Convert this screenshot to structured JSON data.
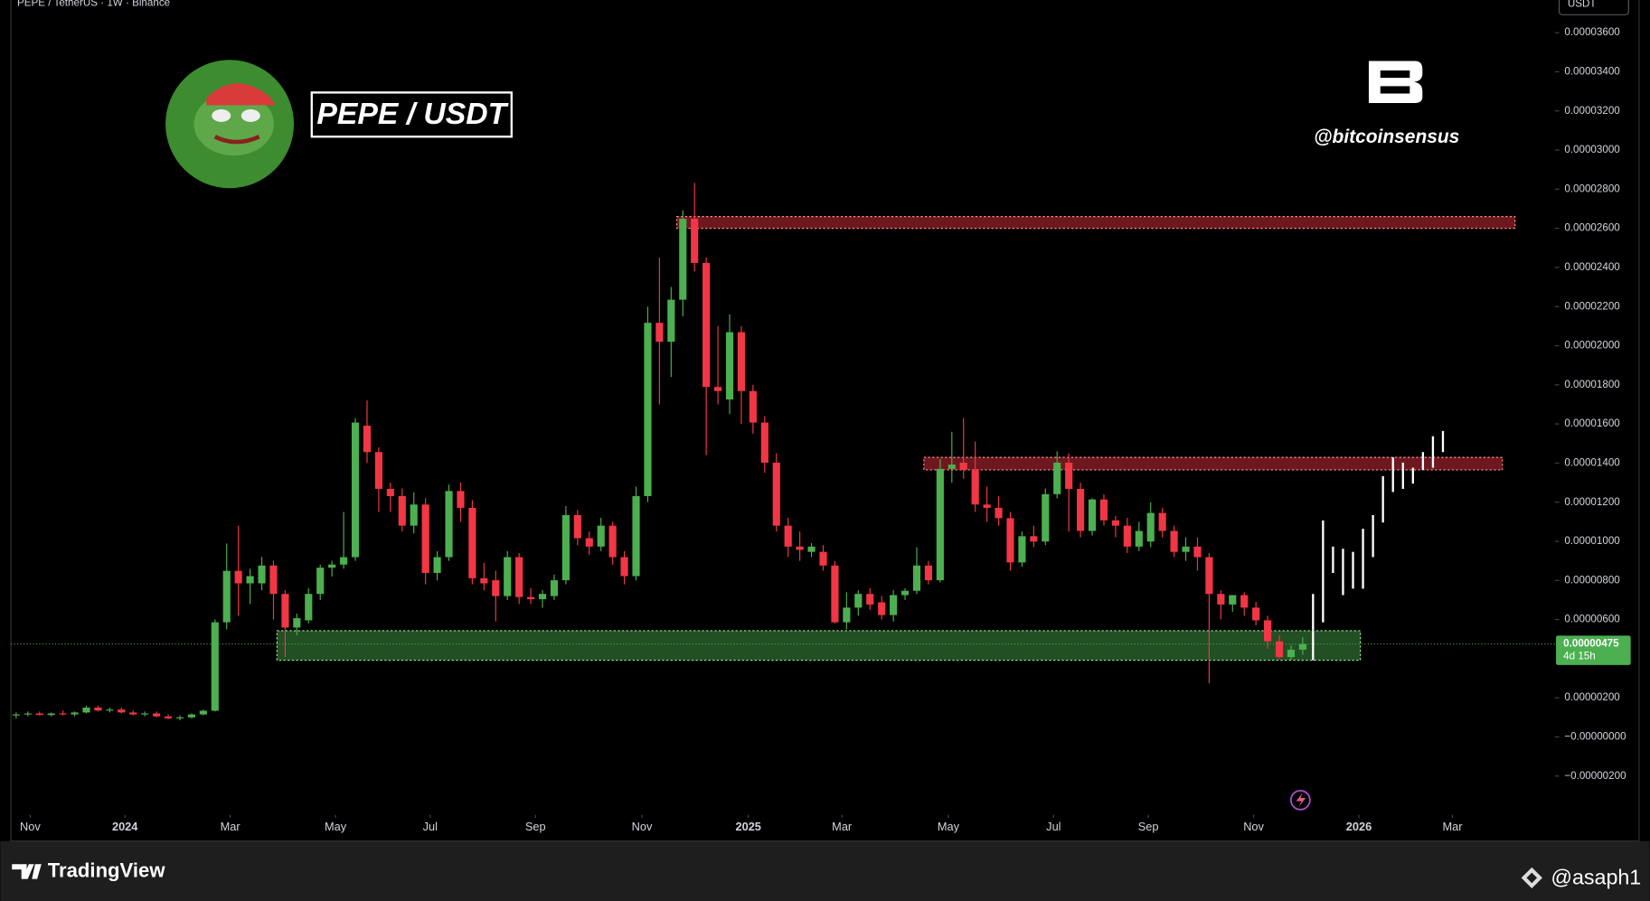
{
  "chart_data": {
    "type": "candlestick",
    "header": "PEPE / TetherUS · 1W · Binance",
    "currency": "USDT",
    "title": "PEPE / USDT",
    "watermark": "@bitcoinsensus",
    "brand": "TradingView",
    "author": "@asaph1",
    "up_color": "#4caf50",
    "down_color": "#f23645",
    "grid": false,
    "ylim": [
      -3.98e-06,
      3.767e-05
    ],
    "yticks": [
      {
        "value": 3.6e-05,
        "label": "0.00003600"
      },
      {
        "value": 3.4e-05,
        "label": "0.00003400"
      },
      {
        "value": 3.2e-05,
        "label": "0.00003200"
      },
      {
        "value": 3e-05,
        "label": "0.00003000"
      },
      {
        "value": 2.8e-05,
        "label": "0.00002800"
      },
      {
        "value": 2.6e-05,
        "label": "0.00002600"
      },
      {
        "value": 2.4e-05,
        "label": "0.00002400"
      },
      {
        "value": 2.2e-05,
        "label": "0.00002200"
      },
      {
        "value": 2e-05,
        "label": "0.00002000"
      },
      {
        "value": 1.8e-05,
        "label": "0.00001800"
      },
      {
        "value": 1.6e-05,
        "label": "0.00001600"
      },
      {
        "value": 1.4e-05,
        "label": "0.00001400"
      },
      {
        "value": 1.2e-05,
        "label": "0.00001200"
      },
      {
        "value": 1e-05,
        "label": "0.00001000"
      },
      {
        "value": 8e-06,
        "label": "0.00000800"
      },
      {
        "value": 6e-06,
        "label": "0.00000600"
      },
      {
        "value": 2e-06,
        "label": "0.00000200"
      },
      {
        "value": 0,
        "label": "−0.00000000"
      },
      {
        "value": -2e-06,
        "label": "−0.00000200"
      }
    ],
    "xticks": [
      {
        "value": 1.2,
        "label": "Nov"
      },
      {
        "value": 9.3,
        "label": "2024"
      },
      {
        "value": 18.3,
        "label": "Mar"
      },
      {
        "value": 27.3,
        "label": "May"
      },
      {
        "value": 35.4,
        "label": "Jul"
      },
      {
        "value": 44.4,
        "label": "Sep"
      },
      {
        "value": 53.5,
        "label": "Nov"
      },
      {
        "value": 62.6,
        "label": "2025"
      },
      {
        "value": 70.6,
        "label": "Mar"
      },
      {
        "value": 79.7,
        "label": "May"
      },
      {
        "value": 88.7,
        "label": "Jul"
      },
      {
        "value": 96.8,
        "label": "Sep"
      },
      {
        "value": 105.8,
        "label": "Nov"
      },
      {
        "value": 114.8,
        "label": "2026"
      },
      {
        "value": 122.8,
        "label": "Mar"
      }
    ],
    "ohlc": [
      [
        1.1e-06,
        1.25e-06,
        9.5e-07,
        1.15e-06
      ],
      [
        1.15e-06,
        1.3e-06,
        1.05e-06,
        1.2e-06
      ],
      [
        1.2e-06,
        1.3e-06,
        1.1e-06,
        1.12e-06
      ],
      [
        1.12e-06,
        1.25e-06,
        1.05e-06,
        1.2e-06
      ],
      [
        1.2e-06,
        1.35e-06,
        1.1e-06,
        1.15e-06
      ],
      [
        1.15e-06,
        1.3e-06,
        1.05e-06,
        1.25e-06
      ],
      [
        1.25e-06,
        1.6e-06,
        1.2e-06,
        1.5e-06
      ],
      [
        1.5e-06,
        1.6e-06,
        1.3e-06,
        1.35e-06
      ],
      [
        1.35e-06,
        1.5e-06,
        1.25e-06,
        1.4e-06
      ],
      [
        1.4e-06,
        1.5e-06,
        1.2e-06,
        1.25e-06
      ],
      [
        1.25e-06,
        1.35e-06,
        1.1e-06,
        1.15e-06
      ],
      [
        1.15e-06,
        1.3e-06,
        1.05e-06,
        1.2e-06
      ],
      [
        1.2e-06,
        1.3e-06,
        1e-06,
        1.05e-06
      ],
      [
        1.05e-06,
        1.15e-06,
        9e-07,
        9.5e-07
      ],
      [
        9.5e-07,
        1.1e-06,
        8.5e-07,
        1e-06
      ],
      [
        1e-06,
        1.2e-06,
        9.5e-07,
        1.15e-06
      ],
      [
        1.15e-06,
        1.4e-06,
        1.1e-06,
        1.34e-06
      ],
      [
        1.34e-06,
        6e-06,
        1.3e-06,
        5.86e-06
      ],
      [
        5.86e-06,
        9.89e-06,
        5.5e-06,
        8.49e-06
      ],
      [
        8.49e-06,
        1.08e-05,
        6.2e-06,
        7.85e-06
      ],
      [
        7.85e-06,
        8.6e-06,
        6.8e-06,
        8.22e-06
      ],
      [
        7.85e-06,
        9.2e-06,
        7.5e-06,
        8.76e-06
      ],
      [
        8.76e-06,
        9e-06,
        6e-06,
        7.31e-06
      ],
      [
        7.31e-06,
        7.5e-06,
        4.08e-06,
        5.59e-06
      ],
      [
        5.59e-06,
        6.3e-06,
        5.2e-06,
        6.07e-06
      ],
      [
        5.96e-06,
        7.6e-06,
        5.8e-06,
        7.31e-06
      ],
      [
        7.31e-06,
        8.8e-06,
        7e-06,
        8.65e-06
      ],
      [
        8.65e-06,
        9e-06,
        8.2e-06,
        8.81e-06
      ],
      [
        8.81e-06,
        1.15e-05,
        8.6e-06,
        9.19e-06
      ],
      [
        9.19e-06,
        1.63e-05,
        9e-06,
        1.607e-05
      ],
      [
        1.591e-05,
        1.72e-05,
        1.4e-05,
        1.456e-05
      ],
      [
        1.456e-05,
        1.48e-05,
        1.15e-05,
        1.268e-05
      ],
      [
        1.268e-05,
        1.3e-05,
        1.15e-05,
        1.231e-05
      ],
      [
        1.231e-05,
        1.27e-05,
        1.05e-05,
        1.08e-05
      ],
      [
        1.08e-05,
        1.25e-05,
        1.04e-05,
        1.188e-05
      ],
      [
        1.188e-05,
        1.22e-05,
        7.8e-06,
        8.38e-06
      ],
      [
        8.38e-06,
        9.5e-06,
        8e-06,
        9.19e-06
      ],
      [
        9.19e-06,
        1.29e-05,
        9e-06,
        1.257e-05
      ],
      [
        1.257e-05,
        1.3e-05,
        1.1e-05,
        1.171e-05
      ],
      [
        1.171e-05,
        1.21e-05,
        7.8e-06,
        8.11e-06
      ],
      [
        8.11e-06,
        8.9e-06,
        7.5e-06,
        7.85e-06
      ],
      [
        8.01e-06,
        8.5e-06,
        5.9e-06,
        7.2e-06
      ],
      [
        7.2e-06,
        9.5e-06,
        7e-06,
        9.19e-06
      ],
      [
        9.19e-06,
        9.4e-06,
        6.8e-06,
        7.15e-06
      ],
      [
        7.15e-06,
        7.6e-06,
        6.8e-06,
        7.04e-06
      ],
      [
        7.04e-06,
        7.5e-06,
        6.6e-06,
        7.31e-06
      ],
      [
        7.2e-06,
        8.3e-06,
        7e-06,
        8.01e-06
      ],
      [
        8.01e-06,
        1.18e-05,
        7.8e-06,
        1.134e-05
      ],
      [
        1.134e-05,
        1.16e-05,
        9.8e-06,
        1.016e-05
      ],
      [
        1.016e-05,
        1.05e-05,
        9.3e-06,
        9.73e-06
      ],
      [
        9.73e-06,
        1.12e-05,
        9.5e-06,
        1.08e-05
      ],
      [
        1.08e-05,
        1.1e-05,
        8.8e-06,
        9.19e-06
      ],
      [
        9.19e-06,
        9.5e-06,
        7.8e-06,
        8.22e-06
      ],
      [
        8.22e-06,
        1.28e-05,
        8e-06,
        1.231e-05
      ],
      [
        1.231e-05,
        2.2e-05,
        1.2e-05,
        2.117e-05
      ],
      [
        2.117e-05,
        2.45e-05,
        1.7e-05,
        2.02e-05
      ],
      [
        2.02e-05,
        2.3e-05,
        1.84e-05,
        2.235e-05
      ],
      [
        2.235e-05,
        2.692e-05,
        2.15e-05,
        2.649e-05
      ],
      [
        2.649e-05,
        2.832e-05,
        2.38e-05,
        2.423e-05
      ],
      [
        2.423e-05,
        2.45e-05,
        1.44e-05,
        1.789e-05
      ],
      [
        1.789e-05,
        2.1e-05,
        1.7e-05,
        1.768e-05
      ],
      [
        1.725e-05,
        2.16e-05,
        1.65e-05,
        2.069e-05
      ],
      [
        2.069e-05,
        2.1e-05,
        1.6e-05,
        1.768e-05
      ],
      [
        1.768e-05,
        1.8e-05,
        1.55e-05,
        1.607e-05
      ],
      [
        1.607e-05,
        1.64e-05,
        1.35e-05,
        1.402e-05
      ],
      [
        1.402e-05,
        1.45e-05,
        1.05e-05,
        1.08e-05
      ],
      [
        1.08e-05,
        1.12e-05,
        9.2e-06,
        9.73e-06
      ],
      [
        9.73e-06,
        1.05e-05,
        9e-06,
        9.56e-06
      ],
      [
        9.46e-06,
        9.9e-06,
        9.2e-06,
        9.73e-06
      ],
      [
        9.46e-06,
        9.8e-06,
        8.5e-06,
        8.76e-06
      ],
      [
        8.76e-06,
        9e-06,
        5.8e-06,
        5.86e-06
      ],
      [
        5.86e-06,
        7.4e-06,
        5.5e-06,
        6.61e-06
      ],
      [
        6.61e-06,
        7.5e-06,
        6.2e-06,
        7.31e-06
      ],
      [
        7.31e-06,
        7.6e-06,
        6.5e-06,
        6.77e-06
      ],
      [
        6.88e-06,
        7.2e-06,
        6e-06,
        6.23e-06
      ],
      [
        6.23e-06,
        7.5e-06,
        5.9e-06,
        7.25e-06
      ],
      [
        7.25e-06,
        7.6e-06,
        7e-06,
        7.47e-06
      ],
      [
        7.47e-06,
        9.7e-06,
        7.3e-06,
        8.76e-06
      ],
      [
        8.76e-06,
        9e-06,
        7.8e-06,
        8.01e-06
      ],
      [
        8.01e-06,
        1.42e-05,
        7.9e-06,
        1.37e-05
      ],
      [
        1.37e-05,
        1.56e-05,
        1.3e-05,
        1.392e-05
      ],
      [
        1.402e-05,
        1.63e-05,
        1.32e-05,
        1.365e-05
      ],
      [
        1.365e-05,
        1.51e-05,
        1.15e-05,
        1.188e-05
      ],
      [
        1.188e-05,
        1.28e-05,
        1.1e-05,
        1.171e-05
      ],
      [
        1.171e-05,
        1.23e-05,
        1.08e-05,
        1.118e-05
      ],
      [
        1.118e-05,
        1.15e-05,
        8.5e-06,
        8.92e-06
      ],
      [
        8.92e-06,
        1.05e-05,
        8.7e-06,
        1.026e-05
      ],
      [
        1.026e-05,
        1.08e-05,
        9.7e-06,
        9.99e-06
      ],
      [
        9.99e-06,
        1.27e-05,
        9.8e-06,
        1.241e-05
      ],
      [
        1.241e-05,
        1.46e-05,
        1.22e-05,
        1.402e-05
      ],
      [
        1.402e-05,
        1.45e-05,
        1.05e-05,
        1.268e-05
      ],
      [
        1.268e-05,
        1.3e-05,
        1.02e-05,
        1.053e-05
      ],
      [
        1.053e-05,
        1.22e-05,
        1.03e-05,
        1.214e-05
      ],
      [
        1.214e-05,
        1.24e-05,
        1.08e-05,
        1.107e-05
      ],
      [
        1.107e-05,
        1.13e-05,
        1.02e-05,
        1.08e-05
      ],
      [
        1.08e-05,
        1.12e-05,
        9.4e-06,
        9.73e-06
      ],
      [
        9.73e-06,
        1.1e-05,
        9.5e-06,
        1.053e-05
      ],
      [
        9.99e-06,
        1.2e-05,
        9.7e-06,
        1.145e-05
      ],
      [
        1.145e-05,
        1.17e-05,
        1.02e-05,
        1.053e-05
      ],
      [
        1.053e-05,
        1.08e-05,
        9.2e-06,
        9.46e-06
      ],
      [
        9.46e-06,
        1.02e-05,
        9e-06,
        9.73e-06
      ],
      [
        9.73e-06,
        1.02e-05,
        8.5e-06,
        9.19e-06
      ],
      [
        9.19e-06,
        9.4e-06,
        2.74e-06,
        7.31e-06
      ],
      [
        7.31e-06,
        7.5e-06,
        6e-06,
        6.77e-06
      ],
      [
        6.77e-06,
        7.2e-06,
        6.4e-06,
        7.25e-06
      ],
      [
        7.25e-06,
        7.4e-06,
        6.2e-06,
        6.61e-06
      ],
      [
        6.61e-06,
        6.9e-06,
        5.7e-06,
        5.96e-06
      ],
      [
        5.96e-06,
        6.2e-06,
        4.5e-06,
        4.89e-06
      ],
      [
        4.89e-06,
        5.2e-06,
        4e-06,
        4.08e-06
      ],
      [
        4.08e-06,
        4.7e-06,
        3.95e-06,
        4.46e-06
      ],
      [
        4.46e-06,
        5.1e-06,
        4.2e-06,
        4.75e-06
      ]
    ],
    "zones": [
      {
        "top": 2.66e-05,
        "bottom": 2.6e-05,
        "color": "#f23645"
      },
      {
        "top": 1.429e-05,
        "bottom": 1.365e-05,
        "color": "#f23645"
      },
      {
        "top": 5.43e-06,
        "bottom": 3.92e-06,
        "color": "#4caf50"
      }
    ],
    "projection": [
      [
        3.92e-06,
        7.31e-06
      ],
      [
        5.86e-06,
        1.107e-05
      ],
      [
        8.38e-06,
        9.73e-06
      ],
      [
        7.25e-06,
        9.62e-06
      ],
      [
        7.58e-06,
        9.46e-06
      ],
      [
        7.58e-06,
        1.064e-05
      ],
      [
        9.19e-06,
        1.134e-05
      ],
      [
        1.096e-05,
        1.333e-05
      ],
      [
        1.252e-05,
        1.429e-05
      ],
      [
        1.268e-05,
        1.402e-05
      ],
      [
        1.295e-05,
        1.376e-05
      ],
      [
        1.365e-05,
        1.456e-05
      ],
      [
        1.376e-05,
        1.537e-05
      ],
      [
        1.456e-05,
        1.564e-05
      ]
    ],
    "last_price": 4.75e-06,
    "last_price_label": "0.00000475",
    "countdown": "4d 15h"
  }
}
